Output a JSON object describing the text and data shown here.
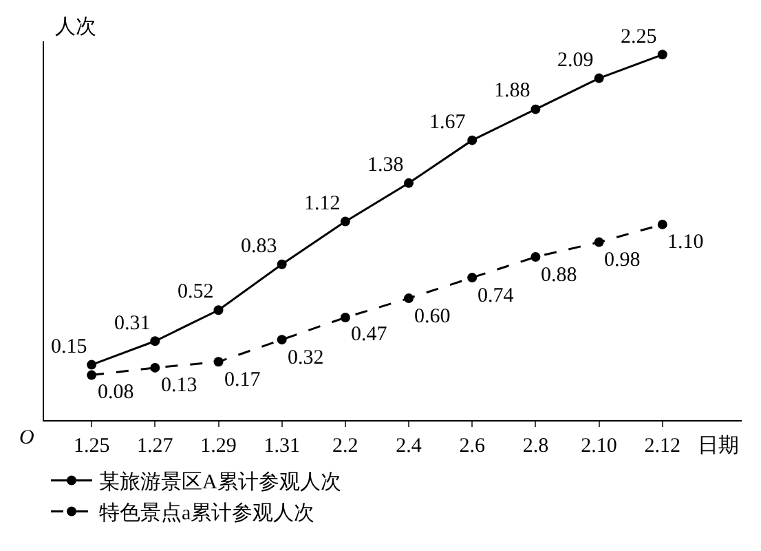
{
  "chart_data": {
    "type": "line",
    "xlabel": "日期",
    "ylabel": "人次",
    "annotations": [
      "O"
    ],
    "categories": [
      "1.25",
      "1.27",
      "1.29",
      "1.31",
      "2.2",
      "2.4",
      "2.6",
      "2.8",
      "2.10",
      "2.12"
    ],
    "series": [
      {
        "name": "某旅游景区A累计参观人次",
        "color": "#000000",
        "line_style": "solid",
        "values": [
          0.15,
          0.31,
          0.52,
          0.83,
          1.12,
          1.38,
          1.67,
          1.88,
          2.09,
          2.25
        ],
        "value_labels": [
          "0.15",
          "0.31",
          "0.52",
          "0.83",
          "1.12",
          "1.38",
          "1.67",
          "1.88",
          "2.09",
          "2.25"
        ]
      },
      {
        "name": "特色景点a累计参观人次",
        "color": "#000000",
        "line_style": "dashed",
        "values": [
          0.08,
          0.13,
          0.17,
          0.32,
          0.47,
          0.6,
          0.74,
          0.88,
          0.98,
          1.1
        ],
        "value_labels": [
          "0.08",
          "0.13",
          "0.17",
          "0.32",
          "0.47",
          "0.60",
          "0.74",
          "0.88",
          "0.98",
          "1.10"
        ]
      }
    ],
    "marker": "circle",
    "legend": "bottom",
    "grid": false
  }
}
